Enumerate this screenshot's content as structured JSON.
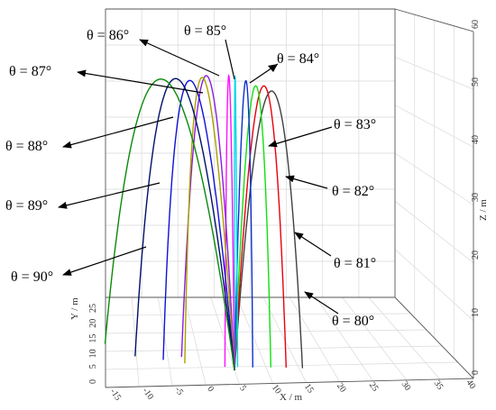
{
  "chart_data": {
    "type": "line",
    "projection": "3d",
    "axes": {
      "x": {
        "label": "X / m",
        "ticks": [
          "-15",
          "-10",
          "-5",
          "0",
          "5",
          "10",
          "15",
          "20",
          "25",
          "30",
          "35",
          "40"
        ],
        "range": [
          -15,
          40
        ]
      },
      "y": {
        "label": "Y / m",
        "ticks": [
          "0",
          "5",
          "10",
          "15",
          "20",
          "25"
        ],
        "range": [
          0,
          25
        ]
      },
      "z": {
        "label": "Z / m",
        "ticks": [
          "0",
          "10",
          "20",
          "30",
          "40",
          "50",
          "60"
        ],
        "range": [
          0,
          60
        ]
      }
    },
    "grid": true,
    "series": [
      {
        "name": "θ = 80°",
        "angle": 80,
        "color": "#404040"
      },
      {
        "name": "θ = 81°",
        "angle": 81,
        "color": "#e8000b"
      },
      {
        "name": "θ = 82°",
        "angle": 82,
        "color": "#10e010"
      },
      {
        "name": "θ = 83°",
        "angle": 83,
        "color": "#0b2fd0"
      },
      {
        "name": "θ = 84°",
        "angle": 84,
        "color": "#00d8e8"
      },
      {
        "name": "θ = 85°",
        "angle": 85,
        "color": "#ff10ff"
      },
      {
        "name": "θ = 86°",
        "angle": 86,
        "color": "#8a1ce0"
      },
      {
        "name": "θ = 87°",
        "angle": 87,
        "color": "#a8a000"
      },
      {
        "name": "θ = 88°",
        "angle": 88,
        "color": "#1010d8"
      },
      {
        "name": "θ = 89°",
        "angle": 89,
        "color": "#00106a"
      },
      {
        "name": "θ = 90°",
        "angle": 90,
        "color": "#0a8a0a"
      }
    ]
  }
}
